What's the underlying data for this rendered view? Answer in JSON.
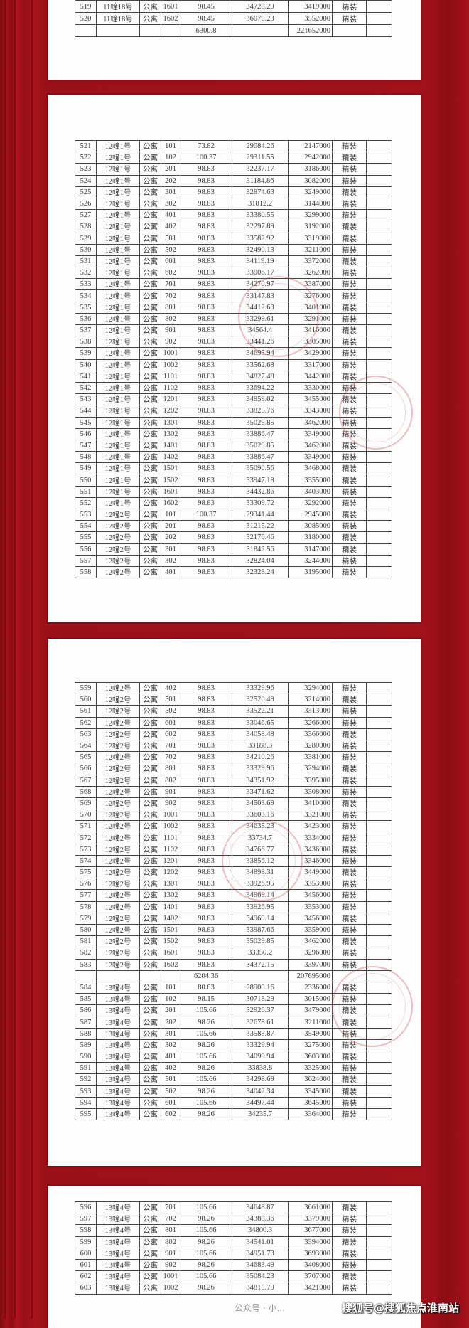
{
  "colors": {
    "background": "#a0111a",
    "paper": "#fdfdfd",
    "seal": "#c84650"
  },
  "pages": [
    {
      "rows": [
        [
          "519",
          "11幢18号",
          "公寓",
          "1601",
          "98.45",
          "34728.29",
          "3419000",
          "精装"
        ],
        [
          "520",
          "11幢18号",
          "公寓",
          "1602",
          "98.45",
          "36079.23",
          "3552000",
          "精装"
        ],
        [
          "",
          "",
          "",
          "",
          "6300.8",
          "",
          "221652000",
          ""
        ]
      ]
    },
    {
      "rows": [
        [
          "521",
          "12幢1号",
          "公寓",
          "101",
          "73.82",
          "29084.26",
          "2147000",
          "精装"
        ],
        [
          "522",
          "12幢1号",
          "公寓",
          "102",
          "100.37",
          "29311.55",
          "2942000",
          "精装"
        ],
        [
          "523",
          "12幢1号",
          "公寓",
          "201",
          "98.83",
          "32237.17",
          "3186000",
          "精装"
        ],
        [
          "524",
          "12幢1号",
          "公寓",
          "202",
          "98.83",
          "31184.86",
          "3082000",
          "精装"
        ],
        [
          "525",
          "12幢1号",
          "公寓",
          "301",
          "98.83",
          "32874.63",
          "3249000",
          "精装"
        ],
        [
          "526",
          "12幢1号",
          "公寓",
          "302",
          "98.83",
          "31812.2",
          "3144000",
          "精装"
        ],
        [
          "527",
          "12幢1号",
          "公寓",
          "401",
          "98.83",
          "33380.55",
          "3299000",
          "精装"
        ],
        [
          "528",
          "12幢1号",
          "公寓",
          "402",
          "98.83",
          "32297.89",
          "3192000",
          "精装"
        ],
        [
          "529",
          "12幢1号",
          "公寓",
          "501",
          "98.83",
          "33582.92",
          "3319000",
          "精装"
        ],
        [
          "530",
          "12幢1号",
          "公寓",
          "502",
          "98.83",
          "32490.13",
          "3211000",
          "精装"
        ],
        [
          "531",
          "12幢1号",
          "公寓",
          "601",
          "98.83",
          "34119.19",
          "3372000",
          "精装"
        ],
        [
          "532",
          "12幢1号",
          "公寓",
          "602",
          "98.83",
          "33006.17",
          "3262000",
          "精装"
        ],
        [
          "533",
          "12幢1号",
          "公寓",
          "701",
          "98.83",
          "34270.97",
          "3387000",
          "精装"
        ],
        [
          "534",
          "12幢1号",
          "公寓",
          "702",
          "98.83",
          "33147.83",
          "3276000",
          "精装"
        ],
        [
          "535",
          "12幢1号",
          "公寓",
          "801",
          "98.83",
          "34412.63",
          "3401000",
          "精装"
        ],
        [
          "536",
          "12幢1号",
          "公寓",
          "802",
          "98.83",
          "33299.61",
          "3291000",
          "精装"
        ],
        [
          "537",
          "12幢1号",
          "公寓",
          "901",
          "98.83",
          "34564.4",
          "3416000",
          "精装"
        ],
        [
          "538",
          "12幢1号",
          "公寓",
          "902",
          "98.83",
          "33441.26",
          "3305000",
          "精装"
        ],
        [
          "539",
          "12幢1号",
          "公寓",
          "1001",
          "98.83",
          "34695.94",
          "3429000",
          "精装"
        ],
        [
          "540",
          "12幢1号",
          "公寓",
          "1002",
          "98.83",
          "33562.68",
          "3317000",
          "精装"
        ],
        [
          "541",
          "12幢1号",
          "公寓",
          "1101",
          "98.83",
          "34827.48",
          "3442000",
          "精装"
        ],
        [
          "542",
          "12幢1号",
          "公寓",
          "1102",
          "98.83",
          "33694.22",
          "3330000",
          "精装"
        ],
        [
          "543",
          "12幢1号",
          "公寓",
          "1201",
          "98.83",
          "34959.02",
          "3455000",
          "精装"
        ],
        [
          "544",
          "12幢1号",
          "公寓",
          "1202",
          "98.83",
          "33825.76",
          "3343000",
          "精装"
        ],
        [
          "545",
          "12幢1号",
          "公寓",
          "1301",
          "98.83",
          "35029.85",
          "3462000",
          "精装"
        ],
        [
          "546",
          "12幢1号",
          "公寓",
          "1302",
          "98.83",
          "33886.47",
          "3349000",
          "精装"
        ],
        [
          "547",
          "12幢1号",
          "公寓",
          "1401",
          "98.83",
          "35029.85",
          "3462000",
          "精装"
        ],
        [
          "548",
          "12幢1号",
          "公寓",
          "1402",
          "98.83",
          "33886.47",
          "3349000",
          "精装"
        ],
        [
          "549",
          "12幢1号",
          "公寓",
          "1501",
          "98.83",
          "35090.56",
          "3468000",
          "精装"
        ],
        [
          "550",
          "12幢1号",
          "公寓",
          "1502",
          "98.83",
          "33947.18",
          "3355000",
          "精装"
        ],
        [
          "551",
          "12幢1号",
          "公寓",
          "1601",
          "98.83",
          "34432.86",
          "3403000",
          "精装"
        ],
        [
          "552",
          "12幢1号",
          "公寓",
          "1602",
          "98.83",
          "33309.72",
          "3292000",
          "精装"
        ],
        [
          "553",
          "12幢2号",
          "公寓",
          "101",
          "100.37",
          "29341.44",
          "2945000",
          "精装"
        ],
        [
          "554",
          "12幢2号",
          "公寓",
          "201",
          "98.83",
          "31215.22",
          "3085000",
          "精装"
        ],
        [
          "555",
          "12幢2号",
          "公寓",
          "202",
          "98.83",
          "32176.46",
          "3180000",
          "精装"
        ],
        [
          "556",
          "12幢2号",
          "公寓",
          "301",
          "98.83",
          "31842.56",
          "3147000",
          "精装"
        ],
        [
          "557",
          "12幢2号",
          "公寓",
          "302",
          "98.83",
          "32824.04",
          "3244000",
          "精装"
        ],
        [
          "558",
          "12幢2号",
          "公寓",
          "401",
          "98.83",
          "32328.24",
          "3195000",
          "精装"
        ]
      ]
    },
    {
      "rows": [
        [
          "559",
          "12幢2号",
          "公寓",
          "402",
          "98.83",
          "33329.96",
          "3294000",
          "精装"
        ],
        [
          "560",
          "12幢2号",
          "公寓",
          "501",
          "98.83",
          "32520.49",
          "3214000",
          "精装"
        ],
        [
          "561",
          "12幢2号",
          "公寓",
          "502",
          "98.83",
          "33522.21",
          "3313000",
          "精装"
        ],
        [
          "562",
          "12幢2号",
          "公寓",
          "601",
          "98.83",
          "33046.65",
          "3266000",
          "精装"
        ],
        [
          "563",
          "12幢2号",
          "公寓",
          "602",
          "98.83",
          "34058.48",
          "3366000",
          "精装"
        ],
        [
          "564",
          "12幢2号",
          "公寓",
          "701",
          "98.83",
          "33188.3",
          "3280000",
          "精装"
        ],
        [
          "565",
          "12幢2号",
          "公寓",
          "702",
          "98.83",
          "34210.26",
          "3381000",
          "精装"
        ],
        [
          "566",
          "12幢2号",
          "公寓",
          "801",
          "98.83",
          "33329.96",
          "3294000",
          "精装"
        ],
        [
          "567",
          "12幢2号",
          "公寓",
          "802",
          "98.83",
          "34351.92",
          "3395000",
          "精装"
        ],
        [
          "568",
          "12幢2号",
          "公寓",
          "901",
          "98.83",
          "33471.62",
          "3308000",
          "精装"
        ],
        [
          "569",
          "12幢2号",
          "公寓",
          "902",
          "98.83",
          "34503.69",
          "3410000",
          "精装"
        ],
        [
          "570",
          "12幢2号",
          "公寓",
          "1001",
          "98.83",
          "33603.16",
          "3321000",
          "精装"
        ],
        [
          "571",
          "12幢2号",
          "公寓",
          "1002",
          "98.83",
          "34635.23",
          "3423000",
          "精装"
        ],
        [
          "572",
          "12幢2号",
          "公寓",
          "1101",
          "98.83",
          "33734.7",
          "3334000",
          "精装"
        ],
        [
          "573",
          "12幢2号",
          "公寓",
          "1102",
          "98.83",
          "34766.77",
          "3436000",
          "精装"
        ],
        [
          "574",
          "12幢2号",
          "公寓",
          "1201",
          "98.83",
          "33856.12",
          "3346000",
          "精装"
        ],
        [
          "575",
          "12幢2号",
          "公寓",
          "1202",
          "98.83",
          "34898.31",
          "3449000",
          "精装"
        ],
        [
          "576",
          "12幢2号",
          "公寓",
          "1301",
          "98.83",
          "33926.95",
          "3353000",
          "精装"
        ],
        [
          "577",
          "12幢2号",
          "公寓",
          "1302",
          "98.83",
          "34969.14",
          "3456000",
          "精装"
        ],
        [
          "578",
          "12幢2号",
          "公寓",
          "1401",
          "98.83",
          "33926.95",
          "3353000",
          "精装"
        ],
        [
          "579",
          "12幢2号",
          "公寓",
          "1402",
          "98.83",
          "34969.14",
          "3456000",
          "精装"
        ],
        [
          "580",
          "12幢2号",
          "公寓",
          "1501",
          "98.83",
          "33987.66",
          "3359000",
          "精装"
        ],
        [
          "581",
          "12幢2号",
          "公寓",
          "1502",
          "98.83",
          "35029.85",
          "3462000",
          "精装"
        ],
        [
          "582",
          "12幢2号",
          "公寓",
          "1601",
          "98.83",
          "33350.2",
          "3296000",
          "精装"
        ],
        [
          "583",
          "12幢2号",
          "公寓",
          "1602",
          "98.83",
          "34372.15",
          "3397000",
          "精装"
        ],
        [
          "",
          "",
          "",
          "",
          "6204.36",
          "",
          "207695000",
          ""
        ],
        [
          "584",
          "13幢4号",
          "公寓",
          "101",
          "80.83",
          "28900.16",
          "2336000",
          "精装"
        ],
        [
          "585",
          "13幢4号",
          "公寓",
          "102",
          "98.15",
          "30718.29",
          "3015000",
          "精装"
        ],
        [
          "586",
          "13幢4号",
          "公寓",
          "201",
          "105.66",
          "32926.37",
          "3479000",
          "精装"
        ],
        [
          "587",
          "13幢4号",
          "公寓",
          "202",
          "98.26",
          "32678.61",
          "3211000",
          "精装"
        ],
        [
          "588",
          "13幢4号",
          "公寓",
          "301",
          "105.66",
          "33588.87",
          "3549000",
          "精装"
        ],
        [
          "589",
          "13幢4号",
          "公寓",
          "302",
          "98.26",
          "33329.94",
          "3275000",
          "精装"
        ],
        [
          "590",
          "13幢4号",
          "公寓",
          "401",
          "105.66",
          "34099.94",
          "3603000",
          "精装"
        ],
        [
          "591",
          "13幢4号",
          "公寓",
          "402",
          "98.26",
          "33838.8",
          "3325000",
          "精装"
        ],
        [
          "592",
          "13幢4号",
          "公寓",
          "501",
          "105.66",
          "34298.69",
          "3624000",
          "精装"
        ],
        [
          "593",
          "13幢4号",
          "公寓",
          "502",
          "98.26",
          "34042.34",
          "3345000",
          "精装"
        ],
        [
          "594",
          "13幢4号",
          "公寓",
          "601",
          "105.66",
          "34497.44",
          "3645000",
          "精装"
        ],
        [
          "595",
          "13幢4号",
          "公寓",
          "602",
          "98.26",
          "34235.7",
          "3364000",
          "精装"
        ]
      ]
    },
    {
      "rows": [
        [
          "596",
          "13幢4号",
          "公寓",
          "701",
          "105.66",
          "34648.87",
          "3661000",
          "精装"
        ],
        [
          "597",
          "13幢4号",
          "公寓",
          "702",
          "98.26",
          "34388.36",
          "3379000",
          "精装"
        ],
        [
          "598",
          "13幢4号",
          "公寓",
          "801",
          "105.66",
          "34800.3",
          "3677000",
          "精装"
        ],
        [
          "599",
          "13幢4号",
          "公寓",
          "802",
          "98.26",
          "34541.01",
          "3394000",
          "精装"
        ],
        [
          "600",
          "13幢4号",
          "公寓",
          "901",
          "105.66",
          "34951.73",
          "3693000",
          "精装"
        ],
        [
          "601",
          "13幢4号",
          "公寓",
          "902",
          "98.26",
          "34683.49",
          "3408000",
          "精装"
        ],
        [
          "602",
          "13幢4号",
          "公寓",
          "1001",
          "105.66",
          "35084.23",
          "3707000",
          "精装"
        ],
        [
          "603",
          "13幢4号",
          "公寓",
          "1002",
          "98.26",
          "34815.79",
          "3421000",
          "精装"
        ]
      ]
    }
  ],
  "watermark": {
    "main": "搜狐号@搜狐焦点淮南站",
    "faint": "公众号 · 小..."
  }
}
